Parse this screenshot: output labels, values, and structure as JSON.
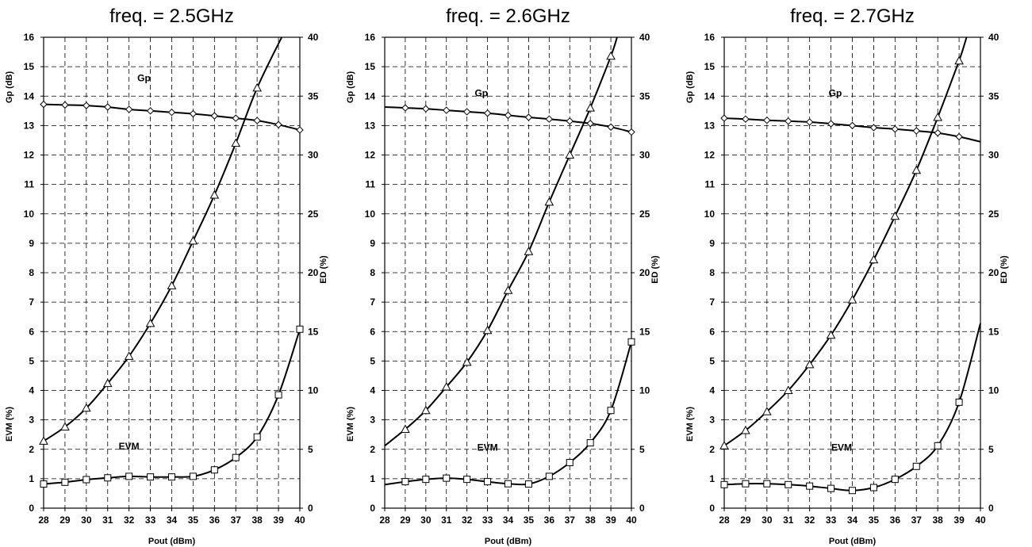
{
  "chart_data": [
    {
      "type": "line",
      "title": "freq. = 2.5GHz",
      "xlabel": "Pout (dBm)",
      "ylabel_left": "Gp (dB)",
      "ylabel_left_lower": "EVM (%)",
      "ylabel_right": "ED (%)",
      "x_ticks": [
        "28",
        "29",
        "30",
        "31",
        "32",
        "33",
        "34",
        "35",
        "36",
        "37",
        "38",
        "39",
        "40"
      ],
      "yleft_ticks": [
        "0",
        "1",
        "2",
        "3",
        "4",
        "5",
        "6",
        "7",
        "8",
        "9",
        "10",
        "11",
        "12",
        "13",
        "14",
        "15",
        "16"
      ],
      "yright_ticks": [
        "0",
        "5",
        "10",
        "15",
        "20",
        "25",
        "30",
        "35",
        "40"
      ],
      "xlim": [
        28,
        40
      ],
      "ylim_left": [
        0,
        16
      ],
      "ylim_right": [
        0,
        40
      ],
      "grid": true,
      "series": [
        {
          "name": "Gp",
          "axis": "left",
          "marker": "diamond",
          "x": [
            28,
            29,
            30,
            31,
            32,
            33,
            34,
            35,
            36,
            37,
            38,
            39,
            40
          ],
          "y": [
            13.72,
            13.7,
            13.68,
            13.63,
            13.55,
            13.5,
            13.45,
            13.4,
            13.33,
            13.25,
            13.17,
            13.03,
            12.85
          ],
          "label_at": [
            32.7,
            14.5
          ]
        },
        {
          "name": "ED",
          "axis": "right",
          "marker": "triangle",
          "x": [
            28,
            29,
            30,
            31,
            32,
            33,
            34,
            35,
            36,
            37,
            38
          ],
          "y": [
            5.7,
            6.9,
            8.5,
            10.6,
            12.9,
            15.7,
            18.9,
            22.7,
            26.6,
            31,
            35.7
          ],
          "curve_end": [
            39.15,
            40
          ],
          "label_at": [
            31.6,
            18.2
          ]
        },
        {
          "name": "EVM",
          "axis": "left",
          "marker": "square",
          "x": [
            28,
            29,
            30,
            31,
            32,
            33,
            34,
            35,
            36,
            37,
            38,
            39,
            40
          ],
          "y": [
            0.82,
            0.88,
            0.97,
            1.03,
            1.08,
            1.06,
            1.06,
            1.08,
            1.3,
            1.72,
            2.42,
            3.85,
            6.08
          ],
          "label_at": [
            32,
            2.0
          ]
        }
      ]
    },
    {
      "type": "line",
      "title": "freq. = 2.6GHz",
      "xlabel": "Pout (dBm)",
      "ylabel_left": "Gp (dB)",
      "ylabel_left_lower": "EVM (%)",
      "ylabel_right": "ED (%)",
      "x_ticks": [
        "28",
        "29",
        "30",
        "31",
        "32",
        "33",
        "34",
        "35",
        "36",
        "37",
        "38",
        "39",
        "40"
      ],
      "yleft_ticks": [
        "0",
        "1",
        "2",
        "3",
        "4",
        "5",
        "6",
        "7",
        "8",
        "9",
        "10",
        "11",
        "12",
        "13",
        "14",
        "15",
        "16"
      ],
      "yright_ticks": [
        "0",
        "5",
        "10",
        "15",
        "20",
        "25",
        "30",
        "35",
        "40"
      ],
      "xlim": [
        28,
        40
      ],
      "ylim_left": [
        0,
        16
      ],
      "ylim_right": [
        0,
        40
      ],
      "grid": true,
      "series": [
        {
          "name": "Gp",
          "axis": "left",
          "marker": "diamond",
          "x": [
            29,
            30,
            31,
            32,
            33,
            34,
            35,
            36,
            37,
            38,
            39,
            40
          ],
          "y": [
            13.6,
            13.57,
            13.52,
            13.47,
            13.42,
            13.35,
            13.28,
            13.22,
            13.15,
            13.07,
            12.95,
            12.78
          ],
          "curve_start": [
            28,
            13.63
          ],
          "label_at": [
            32.7,
            14.0
          ]
        },
        {
          "name": "ED",
          "axis": "right",
          "marker": "triangle",
          "x": [
            29,
            30,
            31,
            32,
            33,
            34,
            35,
            36,
            37,
            38,
            39
          ],
          "y": [
            6.7,
            8.3,
            10.3,
            12.4,
            15.1,
            18.5,
            21.8,
            26,
            30,
            34,
            38.4
          ],
          "curve_start": [
            28,
            5.3
          ],
          "curve_end": [
            39.3,
            40
          ],
          "label_at": [
            32,
            17.3
          ]
        },
        {
          "name": "EVM",
          "axis": "left",
          "marker": "square",
          "x": [
            29,
            30,
            31,
            32,
            33,
            34,
            35,
            36,
            37,
            38,
            39,
            40
          ],
          "y": [
            0.9,
            0.98,
            1.02,
            0.98,
            0.9,
            0.83,
            0.82,
            1.08,
            1.55,
            2.22,
            3.32,
            5.65
          ],
          "curve_start": [
            28,
            0.8
          ],
          "label_at": [
            33,
            1.95
          ]
        }
      ]
    },
    {
      "type": "line",
      "title": "freq. = 2.7GHz",
      "xlabel": "Pout (dBm)",
      "ylabel_left": "Gp (dB)",
      "ylabel_left_lower": "EVM (%)",
      "ylabel_right": "ED (%)",
      "x_ticks": [
        "28",
        "29",
        "30",
        "31",
        "32",
        "33",
        "34",
        "35",
        "36",
        "37",
        "38",
        "39",
        "40"
      ],
      "yleft_ticks": [
        "0",
        "1",
        "2",
        "3",
        "4",
        "5",
        "6",
        "7",
        "8",
        "9",
        "10",
        "11",
        "12",
        "13",
        "14",
        "15",
        "16"
      ],
      "yright_ticks": [
        "0",
        "5",
        "10",
        "15",
        "20",
        "25",
        "30",
        "35",
        "40"
      ],
      "xlim": [
        28,
        40
      ],
      "ylim_left": [
        0,
        16
      ],
      "ylim_right": [
        0,
        40
      ],
      "grid": true,
      "series": [
        {
          "name": "Gp",
          "axis": "left",
          "marker": "diamond",
          "x": [
            28,
            29,
            30,
            31,
            32,
            33,
            34,
            35,
            36,
            37,
            38,
            39
          ],
          "y": [
            13.25,
            13.22,
            13.18,
            13.15,
            13.12,
            13.06,
            13.0,
            12.93,
            12.88,
            12.82,
            12.75,
            12.62
          ],
          "curve_end": [
            40,
            12.45
          ],
          "label_at": [
            33.2,
            14.0
          ]
        },
        {
          "name": "ED",
          "axis": "right",
          "marker": "triangle",
          "x": [
            28,
            29,
            30,
            31,
            32,
            33,
            34,
            35,
            36,
            37,
            38,
            39
          ],
          "y": [
            5.3,
            6.6,
            8.2,
            10,
            12.2,
            14.7,
            17.7,
            21.1,
            24.8,
            28.7,
            33.2,
            38
          ],
          "curve_end": [
            39.35,
            40
          ],
          "label_at": [
            33.2,
            18.2
          ]
        },
        {
          "name": "EVM",
          "axis": "left",
          "marker": "square",
          "x": [
            28,
            29,
            30,
            31,
            32,
            33,
            34,
            35,
            36,
            37,
            38,
            39
          ],
          "y": [
            0.8,
            0.83,
            0.83,
            0.8,
            0.75,
            0.67,
            0.6,
            0.7,
            0.98,
            1.42,
            2.12,
            3.6
          ],
          "curve_end": [
            40,
            6.28
          ],
          "label_at": [
            33.5,
            1.95
          ]
        }
      ]
    }
  ]
}
